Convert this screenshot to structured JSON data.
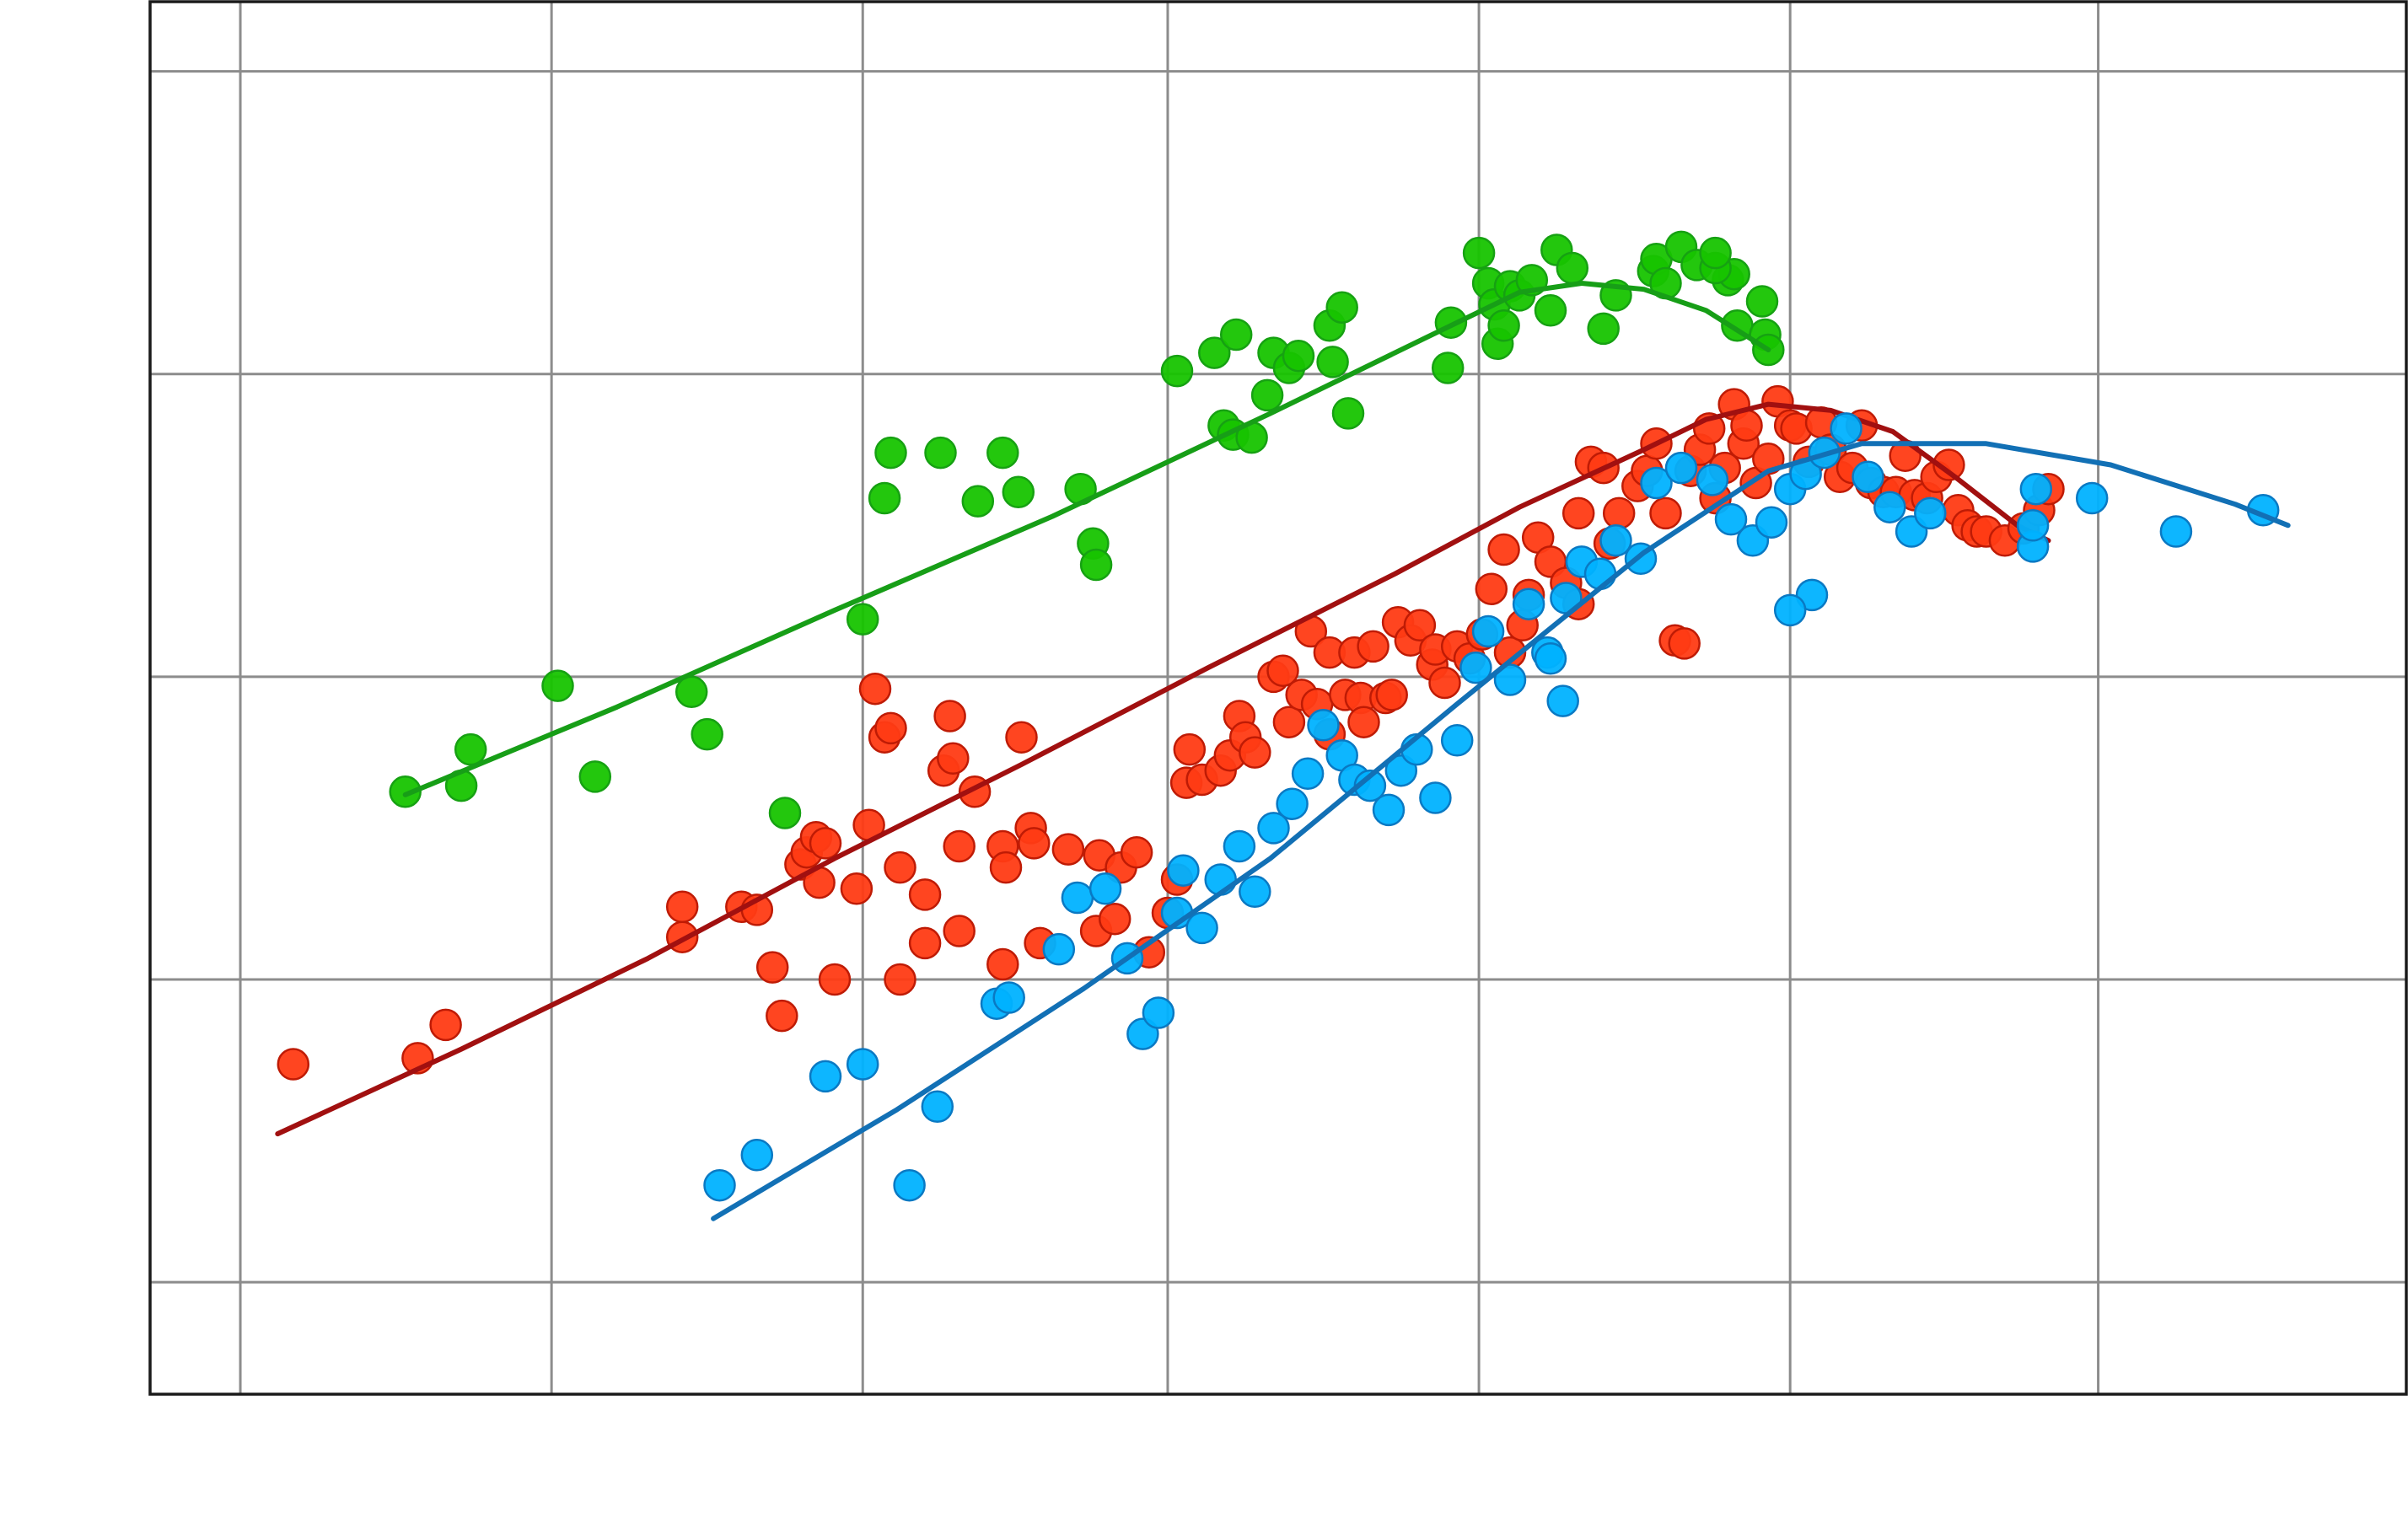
{
  "chart_data": {
    "type": "scatter",
    "title": "",
    "xlabel": "",
    "ylabel": "",
    "xlim": [
      0,
      7.25
    ],
    "ylim": [
      0,
      4.6
    ],
    "x_gridlines": [
      0.29,
      1.29,
      2.29,
      3.27,
      4.27,
      5.27,
      6.26,
      7.26
    ],
    "y_gridlines": [
      0.37,
      1.37,
      2.37,
      3.37,
      4.37
    ],
    "grid": true,
    "legend": "none",
    "series": [
      {
        "color": "#17c400",
        "edge": "#16a112",
        "fit_color": "#179e17",
        "points": [
          [
            0.82,
            1.99
          ],
          [
            1,
            2.01
          ],
          [
            1.03,
            2.13
          ],
          [
            1.31,
            2.34
          ],
          [
            1.43,
            2.04
          ],
          [
            1.74,
            2.32
          ],
          [
            1.79,
            2.18
          ],
          [
            2.04,
            1.92
          ],
          [
            2.29,
            2.56
          ],
          [
            2.36,
            2.96
          ],
          [
            2.38,
            3.11
          ],
          [
            2.54,
            3.11
          ],
          [
            2.66,
            2.95
          ],
          [
            2.74,
            3.11
          ],
          [
            2.79,
            2.98
          ],
          [
            2.99,
            2.99
          ],
          [
            3.03,
            2.81
          ],
          [
            3.04,
            2.74
          ],
          [
            3.3,
            3.38
          ],
          [
            3.42,
            3.44
          ],
          [
            3.45,
            3.2
          ],
          [
            3.48,
            3.17
          ],
          [
            3.49,
            3.5
          ],
          [
            3.54,
            3.16
          ],
          [
            3.59,
            3.3
          ],
          [
            3.61,
            3.44
          ],
          [
            3.66,
            3.39
          ],
          [
            3.69,
            3.43
          ],
          [
            3.79,
            3.53
          ],
          [
            3.8,
            3.41
          ],
          [
            3.83,
            3.59
          ],
          [
            3.85,
            3.24
          ],
          [
            4.17,
            3.39
          ],
          [
            4.18,
            3.54
          ],
          [
            4.3,
            3.67
          ],
          [
            4.32,
            3.6
          ],
          [
            4.33,
            3.47
          ],
          [
            4.35,
            3.53
          ],
          [
            4.37,
            3.66
          ],
          [
            4.4,
            3.63
          ],
          [
            4.44,
            3.68
          ],
          [
            4.5,
            3.58
          ],
          [
            4.52,
            3.78
          ],
          [
            4.57,
            3.72
          ],
          [
            4.67,
            3.52
          ],
          [
            4.71,
            3.63
          ],
          [
            4.83,
            3.71
          ],
          [
            4.84,
            3.75
          ],
          [
            4.87,
            3.67
          ],
          [
            4.92,
            3.79
          ],
          [
            4.97,
            3.73
          ],
          [
            5.07,
            3.68
          ],
          [
            5.1,
            3.53
          ],
          [
            5.09,
            3.7
          ],
          [
            5.03,
            3.72
          ],
          [
            5.18,
            3.61
          ],
          [
            5.19,
            3.5
          ],
          [
            5.2,
            3.45
          ],
          [
            5.03,
            3.77
          ],
          [
            4.27,
            3.77
          ]
        ],
        "fit": [
          [
            0.82,
            1.98
          ],
          [
            1.5,
            2.27
          ],
          [
            2.2,
            2.59
          ],
          [
            2.9,
            2.9
          ],
          [
            3.6,
            3.24
          ],
          [
            4.1,
            3.49
          ],
          [
            4.4,
            3.64
          ],
          [
            4.6,
            3.67
          ],
          [
            4.8,
            3.65
          ],
          [
            5.0,
            3.58
          ],
          [
            5.2,
            3.45
          ]
        ]
      },
      {
        "color": "#ff3b14",
        "edge": "#bf1b05",
        "fit_color": "#a11010",
        "points": [
          [
            0.46,
            1.09
          ],
          [
            0.86,
            1.11
          ],
          [
            0.95,
            1.22
          ],
          [
            1.71,
            1.51
          ],
          [
            1.71,
            1.61
          ],
          [
            1.9,
            1.61
          ],
          [
            1.95,
            1.6
          ],
          [
            2.0,
            1.41
          ],
          [
            2.03,
            1.25
          ],
          [
            2.09,
            1.75
          ],
          [
            2.11,
            1.79
          ],
          [
            2.14,
            1.84
          ],
          [
            2.15,
            1.69
          ],
          [
            2.17,
            1.82
          ],
          [
            2.2,
            1.37
          ],
          [
            2.27,
            1.67
          ],
          [
            2.31,
            1.88
          ],
          [
            2.33,
            2.33
          ],
          [
            2.36,
            2.17
          ],
          [
            2.38,
            2.2
          ],
          [
            2.41,
            1.74
          ],
          [
            2.41,
            1.37
          ],
          [
            2.49,
            1.49
          ],
          [
            2.49,
            1.65
          ],
          [
            2.55,
            2.06
          ],
          [
            2.57,
            2.24
          ],
          [
            2.58,
            2.1
          ],
          [
            2.6,
            1.81
          ],
          [
            2.6,
            1.53
          ],
          [
            2.65,
            1.99
          ],
          [
            2.74,
            1.81
          ],
          [
            2.74,
            1.42
          ],
          [
            2.75,
            1.74
          ],
          [
            2.8,
            2.17
          ],
          [
            2.83,
            1.87
          ],
          [
            2.84,
            1.82
          ],
          [
            2.86,
            1.49
          ],
          [
            2.95,
            1.8
          ],
          [
            3.05,
            1.78
          ],
          [
            3.04,
            1.53
          ],
          [
            3.1,
            1.57
          ],
          [
            3.12,
            1.74
          ],
          [
            3.17,
            1.79
          ],
          [
            3.21,
            1.46
          ],
          [
            3.27,
            1.59
          ],
          [
            3.3,
            1.7
          ],
          [
            3.33,
            2.02
          ],
          [
            3.34,
            2.13
          ],
          [
            3.38,
            2.03
          ],
          [
            3.44,
            2.06
          ],
          [
            3.47,
            2.11
          ],
          [
            3.5,
            2.24
          ],
          [
            3.52,
            2.17
          ],
          [
            3.55,
            2.12
          ],
          [
            3.61,
            2.37
          ],
          [
            3.64,
            2.39
          ],
          [
            3.66,
            2.22
          ],
          [
            3.7,
            2.31
          ],
          [
            3.73,
            2.52
          ],
          [
            3.75,
            2.28
          ],
          [
            3.79,
            2.45
          ],
          [
            3.79,
            2.18
          ],
          [
            3.84,
            2.31
          ],
          [
            3.87,
            2.45
          ],
          [
            3.89,
            2.3
          ],
          [
            3.9,
            2.22
          ],
          [
            3.93,
            2.47
          ],
          [
            3.97,
            2.3
          ],
          [
            3.99,
            2.31
          ],
          [
            4.01,
            2.55
          ],
          [
            4.05,
            2.49
          ],
          [
            4.08,
            2.54
          ],
          [
            4.12,
            2.41
          ],
          [
            4.13,
            2.46
          ],
          [
            4.16,
            2.35
          ],
          [
            4.2,
            2.47
          ],
          [
            4.24,
            2.43
          ],
          [
            4.28,
            2.51
          ],
          [
            4.31,
            2.66
          ],
          [
            4.35,
            2.79
          ],
          [
            4.37,
            2.45
          ],
          [
            4.41,
            2.54
          ],
          [
            4.43,
            2.64
          ],
          [
            4.46,
            2.83
          ],
          [
            4.5,
            2.75
          ],
          [
            4.55,
            2.68
          ],
          [
            4.59,
            2.61
          ],
          [
            4.59,
            2.91
          ],
          [
            4.63,
            3.08
          ],
          [
            4.67,
            3.06
          ],
          [
            4.69,
            2.81
          ],
          [
            4.72,
            2.91
          ],
          [
            4.78,
            3.0
          ],
          [
            4.81,
            3.05
          ],
          [
            4.84,
            3.14
          ],
          [
            4.87,
            2.91
          ],
          [
            4.9,
            2.49
          ],
          [
            4.93,
            2.48
          ],
          [
            4.95,
            3.05
          ],
          [
            4.98,
            3.12
          ],
          [
            5.01,
            3.19
          ],
          [
            5.03,
            2.96
          ],
          [
            5.06,
            3.06
          ],
          [
            5.09,
            3.27
          ],
          [
            5.12,
            3.14
          ],
          [
            5.13,
            3.2
          ],
          [
            5.16,
            3.01
          ],
          [
            5.2,
            3.09
          ],
          [
            5.23,
            3.28
          ],
          [
            5.27,
            3.2
          ],
          [
            5.29,
            3.19
          ],
          [
            5.33,
            3.08
          ],
          [
            5.37,
            3.21
          ],
          [
            5.4,
            3.12
          ],
          [
            5.43,
            3.03
          ],
          [
            5.47,
            3.06
          ],
          [
            5.5,
            3.2
          ],
          [
            5.53,
            3.01
          ],
          [
            5.57,
            2.98
          ],
          [
            5.61,
            2.98
          ],
          [
            5.64,
            3.1
          ],
          [
            5.67,
            2.97
          ],
          [
            5.71,
            2.96
          ],
          [
            5.74,
            3.03
          ],
          [
            5.78,
            3.07
          ],
          [
            5.81,
            2.92
          ],
          [
            5.84,
            2.87
          ],
          [
            5.87,
            2.85
          ],
          [
            5.9,
            2.85
          ],
          [
            5.96,
            2.82
          ],
          [
            6.02,
            2.86
          ],
          [
            6.07,
            2.92
          ],
          [
            6.1,
            2.99
          ]
        ],
        "fit": [
          [
            0.41,
            0.86
          ],
          [
            1.0,
            1.14
          ],
          [
            1.6,
            1.44
          ],
          [
            2.2,
            1.77
          ],
          [
            2.8,
            2.08
          ],
          [
            3.4,
            2.4
          ],
          [
            4.0,
            2.71
          ],
          [
            4.4,
            2.93
          ],
          [
            4.8,
            3.12
          ],
          [
            5.0,
            3.22
          ],
          [
            5.2,
            3.27
          ],
          [
            5.4,
            3.25
          ],
          [
            5.6,
            3.18
          ],
          [
            5.8,
            3.03
          ],
          [
            6.0,
            2.87
          ],
          [
            6.1,
            2.82
          ]
        ]
      },
      {
        "color": "#00b2ff",
        "edge": "#0a79c3",
        "fit_color": "#1270b5",
        "points": [
          [
            1.83,
            0.69
          ],
          [
            1.95,
            0.79
          ],
          [
            2.17,
            1.05
          ],
          [
            2.29,
            1.09
          ],
          [
            2.44,
            0.69
          ],
          [
            2.53,
            0.95
          ],
          [
            2.72,
            1.29
          ],
          [
            2.76,
            1.31
          ],
          [
            2.92,
            1.47
          ],
          [
            2.98,
            1.64
          ],
          [
            3.07,
            1.67
          ],
          [
            3.14,
            1.44
          ],
          [
            3.19,
            1.19
          ],
          [
            3.24,
            1.26
          ],
          [
            3.3,
            1.59
          ],
          [
            3.32,
            1.73
          ],
          [
            3.38,
            1.54
          ],
          [
            3.44,
            1.7
          ],
          [
            3.5,
            1.81
          ],
          [
            3.55,
            1.66
          ],
          [
            3.61,
            1.87
          ],
          [
            3.67,
            1.95
          ],
          [
            3.72,
            2.05
          ],
          [
            3.77,
            2.21
          ],
          [
            3.83,
            2.11
          ],
          [
            3.87,
            2.03
          ],
          [
            3.92,
            2.01
          ],
          [
            3.98,
            1.93
          ],
          [
            4.02,
            2.06
          ],
          [
            4.07,
            2.13
          ],
          [
            4.13,
            1.97
          ],
          [
            4.2,
            2.16
          ],
          [
            4.26,
            2.4
          ],
          [
            4.3,
            2.52
          ],
          [
            4.37,
            2.36
          ],
          [
            4.43,
            2.61
          ],
          [
            4.49,
            2.45
          ],
          [
            4.55,
            2.63
          ],
          [
            4.6,
            2.75
          ],
          [
            4.66,
            2.71
          ],
          [
            4.71,
            2.82
          ],
          [
            4.79,
            2.76
          ],
          [
            4.84,
            3.01
          ],
          [
            4.92,
            3.06
          ],
          [
            5.02,
            3.02
          ],
          [
            5.08,
            2.89
          ],
          [
            5.15,
            2.82
          ],
          [
            5.21,
            2.88
          ],
          [
            5.27,
            2.99
          ],
          [
            5.32,
            3.04
          ],
          [
            5.38,
            3.11
          ],
          [
            5.45,
            3.19
          ],
          [
            5.52,
            3.03
          ],
          [
            5.59,
            2.93
          ],
          [
            5.66,
            2.85
          ],
          [
            5.72,
            2.91
          ],
          [
            6.05,
            2.8
          ],
          [
            6.06,
            2.99
          ],
          [
            6.24,
            2.96
          ],
          [
            6.51,
            2.85
          ],
          [
            6.79,
            2.92
          ],
          [
            6.05,
            2.87
          ],
          [
            5.34,
            2.64
          ],
          [
            5.27,
            2.59
          ],
          [
            4.5,
            2.43
          ],
          [
            4.54,
            2.29
          ]
        ],
        "fit": [
          [
            1.81,
            0.58
          ],
          [
            2.4,
            0.94
          ],
          [
            3.0,
            1.34
          ],
          [
            3.6,
            1.77
          ],
          [
            4.2,
            2.28
          ],
          [
            4.8,
            2.78
          ],
          [
            5.2,
            3.05
          ],
          [
            5.5,
            3.14
          ],
          [
            5.9,
            3.14
          ],
          [
            6.3,
            3.07
          ],
          [
            6.7,
            2.94
          ],
          [
            6.87,
            2.87
          ]
        ]
      }
    ]
  }
}
